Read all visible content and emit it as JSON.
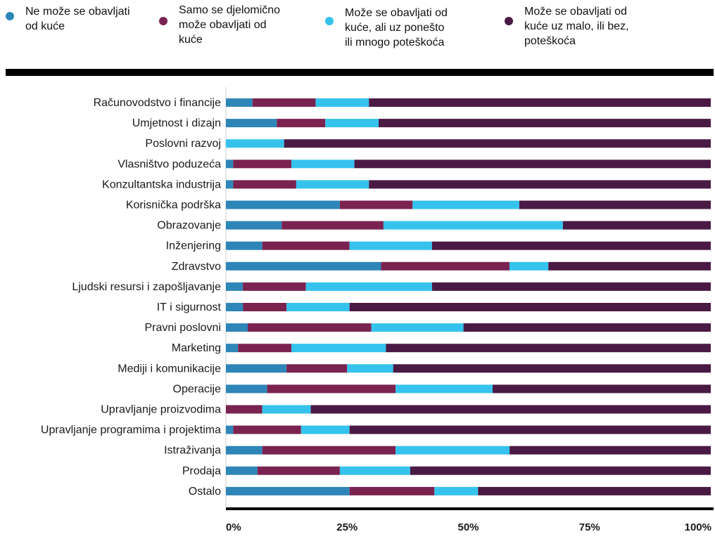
{
  "legend": [
    {
      "label": "Ne može se obavljati\nod kuće",
      "color": "#2e86b8"
    },
    {
      "label": "Samo se djelomično\nmože obavljati od\nkuće",
      "color": "#7b2350"
    },
    {
      "label": "Može se obavljati od\nkuće, ali uz ponešto\nili mnogo poteškoća",
      "color": "#35c3ee"
    },
    {
      "label": "Može se obavljati od\nkuće uz malo, ili bez,\npoteškoća",
      "color": "#4a1a45"
    }
  ],
  "chart_data": {
    "type": "bar",
    "orientation": "horizontal",
    "stacked": true,
    "categories": [
      "Računovodstvo i financije",
      "Umjetnost i dizajn",
      "Poslovni razvoj",
      "Vlasništvo poduzeća",
      "Konzultantska industrija",
      "Korisnička podrška",
      "Obrazovanje",
      "Inženjering",
      "Zdravstvo",
      "Ljudski resursi i zapošljavanje",
      "IT i sigurnost",
      "Pravni poslovni",
      "Marketing",
      "Mediji i komunikacije",
      "Operacije",
      "Upravljanje proizvodima",
      "Upravljanje programima i projektima",
      "Istraživanja",
      "Prodaja",
      "Ostalo"
    ],
    "series": [
      {
        "name": "Ne može se obavljati od kuće",
        "values": [
          5.5,
          10.5,
          0,
          1.5,
          1.5,
          23.5,
          11.5,
          7.5,
          32,
          3.5,
          3.5,
          4.5,
          2.5,
          12.5,
          8.5,
          0,
          1.5,
          7.5,
          6.5,
          25.5
        ]
      },
      {
        "name": "Samo se djelomično može obavljati od kuće",
        "values": [
          13,
          10,
          0,
          12,
          13,
          15,
          21,
          18,
          26.5,
          13,
          9,
          25.5,
          11,
          12.5,
          26.5,
          7.5,
          14,
          27.5,
          17,
          17.5
        ]
      },
      {
        "name": "Može se obavljati od kuće, ali uz ponešto ili mnogo poteškoća",
        "values": [
          11,
          11,
          12,
          13,
          15,
          22,
          37,
          17,
          8,
          26,
          13,
          19,
          19.5,
          9.5,
          20,
          10,
          10,
          23.5,
          14.5,
          9
        ]
      },
      {
        "name": "Može se obavljati od kuće uz malo, ili bez, poteškoća",
        "values": [
          70.5,
          68.5,
          88,
          73.5,
          70.5,
          39.5,
          30.5,
          57.5,
          33.5,
          57.5,
          74.5,
          51,
          67,
          65.5,
          45,
          82.5,
          74.5,
          41.5,
          62,
          48
        ]
      }
    ],
    "x_ticks": [
      "0%",
      "25%",
      "50%",
      "75%",
      "100%"
    ],
    "xlim": [
      0,
      100
    ],
    "legend_position": "top"
  }
}
